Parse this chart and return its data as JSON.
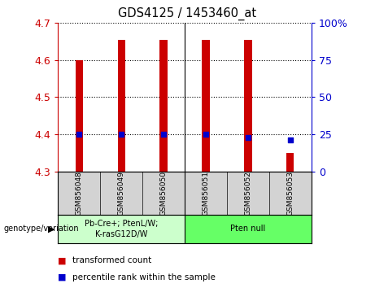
{
  "title": "GDS4125 / 1453460_at",
  "samples": [
    "GSM856048",
    "GSM856049",
    "GSM856050",
    "GSM856051",
    "GSM856052",
    "GSM856053"
  ],
  "red_values": [
    4.6,
    4.655,
    4.655,
    4.655,
    4.655,
    4.35
  ],
  "blue_values": [
    25.0,
    25.0,
    25.0,
    25.0,
    23.0,
    21.0
  ],
  "ylim_left": [
    4.3,
    4.7
  ],
  "ylim_right": [
    0,
    100
  ],
  "yticks_left": [
    4.3,
    4.4,
    4.5,
    4.6,
    4.7
  ],
  "ytick_labels_left": [
    "4.3",
    "4.4",
    "4.5",
    "4.6",
    "4.7"
  ],
  "yticks_right": [
    0,
    25,
    50,
    75,
    100
  ],
  "ytick_labels_right": [
    "0",
    "25",
    "50",
    "75",
    "100%"
  ],
  "left_color": "#cc0000",
  "right_color": "#0000cc",
  "bar_color": "#cc0000",
  "square_color": "#0000cc",
  "group1_label": "Pb-Cre+; PtenL/W;\nK-rasG12D/W",
  "group2_label": "Pten null",
  "group1_color": "#ccffcc",
  "group2_color": "#66ff66",
  "legend_red": "transformed count",
  "legend_blue": "percentile rank within the sample",
  "genotype_label": "genotype/variation",
  "background_label_area": "#d3d3d3",
  "bar_width": 0.18
}
